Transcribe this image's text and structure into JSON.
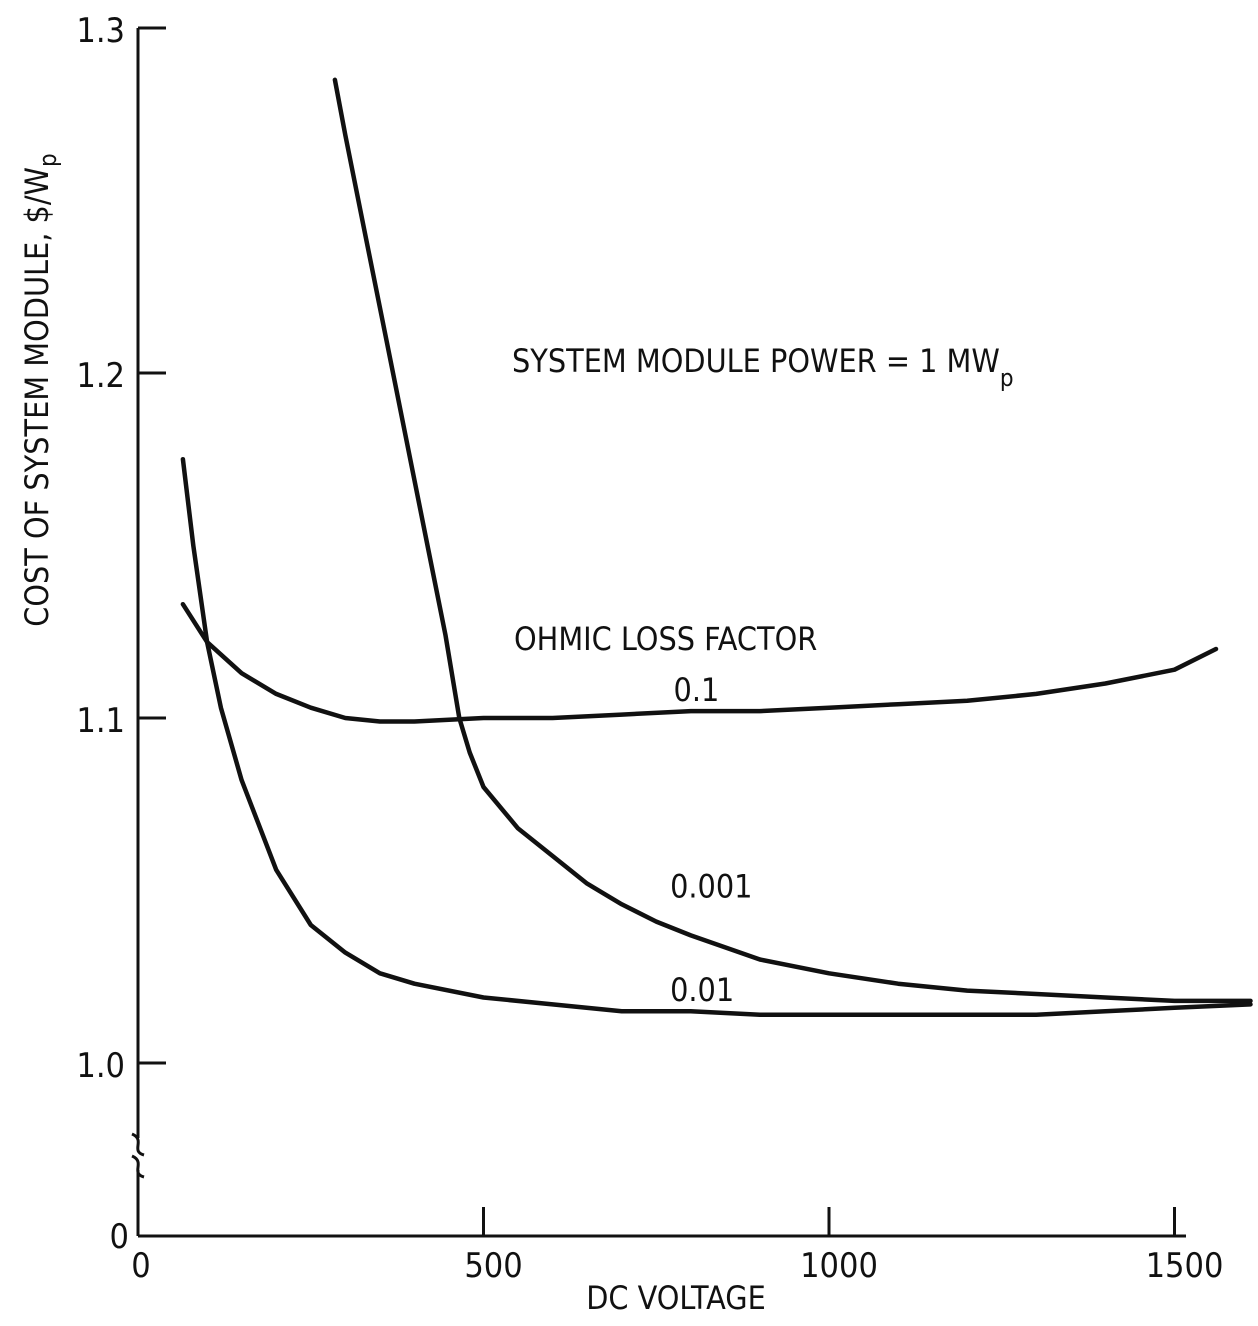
{
  "chart_data": {
    "type": "line",
    "xlabel": "DC VOLTAGE",
    "ylabel_main": "COST OF SYSTEM MODULE, $/W",
    "ylabel_sub": "p",
    "annotation": {
      "main": "SYSTEM MODULE POWER = 1 MW",
      "sub": "p"
    },
    "legend_title": "OHMIC LOSS FACTOR",
    "xlim": [
      0,
      1600
    ],
    "ylim": [
      1.0,
      1.3
    ],
    "y_axis_break": true,
    "x_ticks": [
      {
        "value": 0,
        "label": "0"
      },
      {
        "value": 500,
        "label": "500"
      },
      {
        "value": 1000,
        "label": "1000"
      },
      {
        "value": 1500,
        "label": "1500"
      }
    ],
    "y_ticks": [
      {
        "value": 1.0,
        "label": "1.0"
      },
      {
        "value": 1.1,
        "label": "1.1"
      },
      {
        "value": 1.2,
        "label": "1.2"
      },
      {
        "value": 1.3,
        "label": "1.3"
      }
    ],
    "y_zero_label": "0",
    "series": [
      {
        "name": "0.1",
        "label_at": [
          775,
          1.105
        ],
        "points": [
          [
            65,
            1.133
          ],
          [
            100,
            1.122
          ],
          [
            150,
            1.113
          ],
          [
            200,
            1.107
          ],
          [
            250,
            1.103
          ],
          [
            300,
            1.1
          ],
          [
            350,
            1.099
          ],
          [
            400,
            1.099
          ],
          [
            500,
            1.1
          ],
          [
            600,
            1.1
          ],
          [
            700,
            1.101
          ],
          [
            800,
            1.102
          ],
          [
            900,
            1.102
          ],
          [
            1000,
            1.103
          ],
          [
            1100,
            1.104
          ],
          [
            1200,
            1.105
          ],
          [
            1300,
            1.107
          ],
          [
            1400,
            1.11
          ],
          [
            1500,
            1.114
          ],
          [
            1560,
            1.12
          ]
        ]
      },
      {
        "name": "0.001",
        "label_at": [
          770,
          1.048
        ],
        "points": [
          [
            285,
            1.285
          ],
          [
            300,
            1.269
          ],
          [
            330,
            1.239
          ],
          [
            360,
            1.209
          ],
          [
            390,
            1.179
          ],
          [
            420,
            1.149
          ],
          [
            445,
            1.124
          ],
          [
            465,
            1.1
          ],
          [
            480,
            1.09
          ],
          [
            500,
            1.08
          ],
          [
            550,
            1.068
          ],
          [
            600,
            1.06
          ],
          [
            650,
            1.052
          ],
          [
            700,
            1.046
          ],
          [
            750,
            1.041
          ],
          [
            800,
            1.037
          ],
          [
            900,
            1.03
          ],
          [
            1000,
            1.026
          ],
          [
            1100,
            1.023
          ],
          [
            1200,
            1.021
          ],
          [
            1300,
            1.02
          ],
          [
            1400,
            1.019
          ],
          [
            1500,
            1.018
          ],
          [
            1610,
            1.018
          ]
        ]
      },
      {
        "name": "0.01",
        "label_at": [
          770,
          1.018
        ],
        "points": [
          [
            65,
            1.175
          ],
          [
            80,
            1.15
          ],
          [
            100,
            1.122
          ],
          [
            120,
            1.103
          ],
          [
            150,
            1.082
          ],
          [
            200,
            1.056
          ],
          [
            250,
            1.04
          ],
          [
            300,
            1.032
          ],
          [
            350,
            1.026
          ],
          [
            400,
            1.023
          ],
          [
            500,
            1.019
          ],
          [
            600,
            1.017
          ],
          [
            700,
            1.015
          ],
          [
            800,
            1.015
          ],
          [
            900,
            1.014
          ],
          [
            1000,
            1.014
          ],
          [
            1100,
            1.014
          ],
          [
            1200,
            1.014
          ],
          [
            1300,
            1.014
          ],
          [
            1400,
            1.015
          ],
          [
            1500,
            1.016
          ],
          [
            1610,
            1.017
          ]
        ]
      }
    ]
  }
}
